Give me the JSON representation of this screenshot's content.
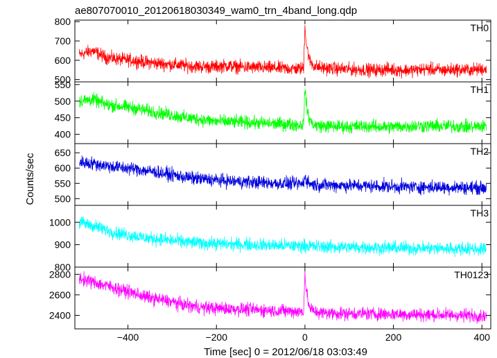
{
  "chart_data": {
    "type": "line",
    "title": "ae807070010_20120618030349_wam0_trn_4band_long.qdp",
    "xlabel": "Time [sec] 0 = 2012/06/18 03:03:49",
    "ylabel": "Counts/sec",
    "xlim": [
      -520,
      420
    ],
    "xticks": [
      -400,
      -200,
      0,
      200,
      400
    ],
    "panels": [
      {
        "name": "TH0",
        "color": "#ff0000",
        "ylim": [
          488,
          808
        ],
        "yticks": [
          500,
          600,
          700,
          800
        ],
        "x": [
          -510,
          -480,
          -450,
          -420,
          -390,
          -360,
          -330,
          -300,
          -270,
          -240,
          -210,
          -180,
          -150,
          -120,
          -90,
          -60,
          -30,
          -10,
          -3,
          0,
          3,
          10,
          20,
          40,
          70,
          100,
          130,
          160,
          190,
          220,
          250,
          280,
          310,
          340,
          370,
          410
        ],
        "y": [
          628,
          650,
          615,
          605,
          600,
          590,
          583,
          578,
          572,
          568,
          565,
          572,
          566,
          563,
          561,
          559,
          557,
          556,
          560,
          790,
          690,
          600,
          572,
          560,
          556,
          553,
          551,
          549,
          553,
          548,
          550,
          555,
          548,
          552,
          550,
          555
        ]
      },
      {
        "name": "TH1",
        "color": "#00ff00",
        "ylim": [
          372,
          558
        ],
        "yticks": [
          400,
          450,
          500,
          550
        ],
        "x": [
          -510,
          -480,
          -450,
          -420,
          -390,
          -360,
          -330,
          -300,
          -270,
          -240,
          -210,
          -180,
          -150,
          -120,
          -90,
          -60,
          -30,
          -10,
          -3,
          0,
          3,
          10,
          20,
          40,
          70,
          100,
          130,
          160,
          190,
          220,
          250,
          280,
          310,
          340,
          370,
          410
        ],
        "y": [
          500,
          505,
          490,
          485,
          480,
          472,
          465,
          458,
          450,
          446,
          440,
          438,
          437,
          435,
          433,
          431,
          430,
          428,
          432,
          545,
          490,
          445,
          428,
          425,
          424,
          423,
          425,
          423,
          422,
          424,
          425,
          426,
          424,
          425,
          422,
          425
        ]
      },
      {
        "name": "TH2",
        "color": "#0000dd",
        "ylim": [
          478,
          680
        ],
        "yticks": [
          500,
          550,
          600,
          650
        ],
        "x": [
          -510,
          -480,
          -450,
          -420,
          -390,
          -360,
          -330,
          -300,
          -270,
          -240,
          -210,
          -180,
          -150,
          -120,
          -90,
          -60,
          -30,
          -10,
          -3,
          0,
          3,
          10,
          20,
          40,
          70,
          100,
          130,
          160,
          190,
          220,
          250,
          280,
          310,
          340,
          370,
          410
        ],
        "y": [
          620,
          615,
          608,
          602,
          598,
          592,
          585,
          578,
          570,
          565,
          562,
          558,
          556,
          554,
          552,
          550,
          549,
          548,
          550,
          575,
          560,
          550,
          546,
          545,
          544,
          543,
          542,
          541,
          540,
          539,
          538,
          538,
          537,
          537,
          536,
          535
        ]
      },
      {
        "name": "TH3",
        "color": "#00ffff",
        "ylim": [
          800,
          1075
        ],
        "yticks": [
          800,
          900,
          1000
        ],
        "x": [
          -510,
          -480,
          -450,
          -420,
          -390,
          -360,
          -330,
          -300,
          -270,
          -240,
          -210,
          -180,
          -150,
          -120,
          -90,
          -60,
          -30,
          -10,
          -3,
          0,
          3,
          10,
          20,
          40,
          70,
          100,
          130,
          160,
          190,
          220,
          250,
          280,
          310,
          340,
          370,
          410
        ],
        "y": [
          1000,
          985,
          965,
          950,
          940,
          930,
          925,
          918,
          912,
          908,
          905,
          903,
          901,
          900,
          898,
          896,
          895,
          894,
          895,
          898,
          896,
          893,
          892,
          891,
          890,
          889,
          888,
          887,
          886,
          885,
          884,
          884,
          883,
          882,
          882,
          880
        ]
      },
      {
        "name": "TH0123",
        "color": "#ff00ff",
        "ylim": [
          2268,
          2870
        ],
        "yticks": [
          2400,
          2600,
          2800
        ],
        "x": [
          -510,
          -480,
          -450,
          -420,
          -390,
          -360,
          -330,
          -300,
          -270,
          -240,
          -210,
          -180,
          -150,
          -120,
          -90,
          -60,
          -30,
          -10,
          -3,
          0,
          3,
          10,
          20,
          40,
          70,
          100,
          130,
          160,
          190,
          220,
          250,
          280,
          310,
          340,
          370,
          410
        ],
        "y": [
          2760,
          2725,
          2690,
          2655,
          2620,
          2580,
          2555,
          2530,
          2500,
          2480,
          2470,
          2465,
          2460,
          2455,
          2450,
          2445,
          2440,
          2435,
          2445,
          2820,
          2640,
          2475,
          2440,
          2425,
          2420,
          2418,
          2416,
          2414,
          2412,
          2410,
          2408,
          2406,
          2404,
          2402,
          2400,
          2395
        ]
      }
    ]
  }
}
